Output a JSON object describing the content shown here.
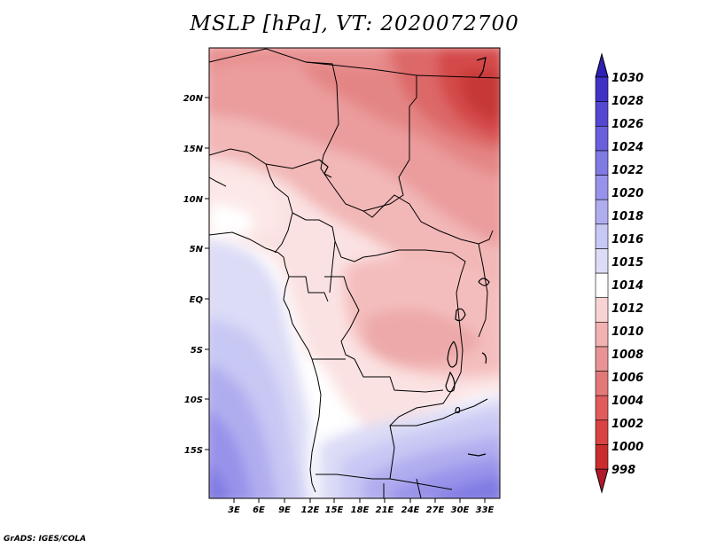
{
  "title": "MSLP [hPa], VT: 2020072700",
  "footer": "GrADS: IGES/COLA",
  "lat_labels": [
    "20N",
    "15N",
    "10N",
    "5N",
    "EQ",
    "5S",
    "10S",
    "15S"
  ],
  "lon_labels": [
    "3E",
    "6E",
    "9E",
    "12E",
    "15E",
    "18E",
    "21E",
    "24E",
    "27E",
    "30E",
    "33E"
  ],
  "colorbar": {
    "levels": [
      "998",
      "1000",
      "1002",
      "1004",
      "1006",
      "1008",
      "1010",
      "1012",
      "1014",
      "1015",
      "1016",
      "1018",
      "1020",
      "1022",
      "1024",
      "1026",
      "1028",
      "1030"
    ],
    "colors_bottom_to_top": [
      "#b2182b",
      "#c92d2d",
      "#d94343",
      "#e05b5b",
      "#e27878",
      "#e89494",
      "#f2b2b2",
      "#f9d3d3",
      "#ffffff",
      "#dcdcf7",
      "#c8c8f4",
      "#b0adef",
      "#9893ea",
      "#807ae3",
      "#6a60dc",
      "#5448d2",
      "#3f32c5",
      "#2e1fb5"
    ]
  },
  "map": {
    "lon_range": [
      0,
      34.5
    ],
    "lat_range": [
      -20,
      24
    ]
  }
}
